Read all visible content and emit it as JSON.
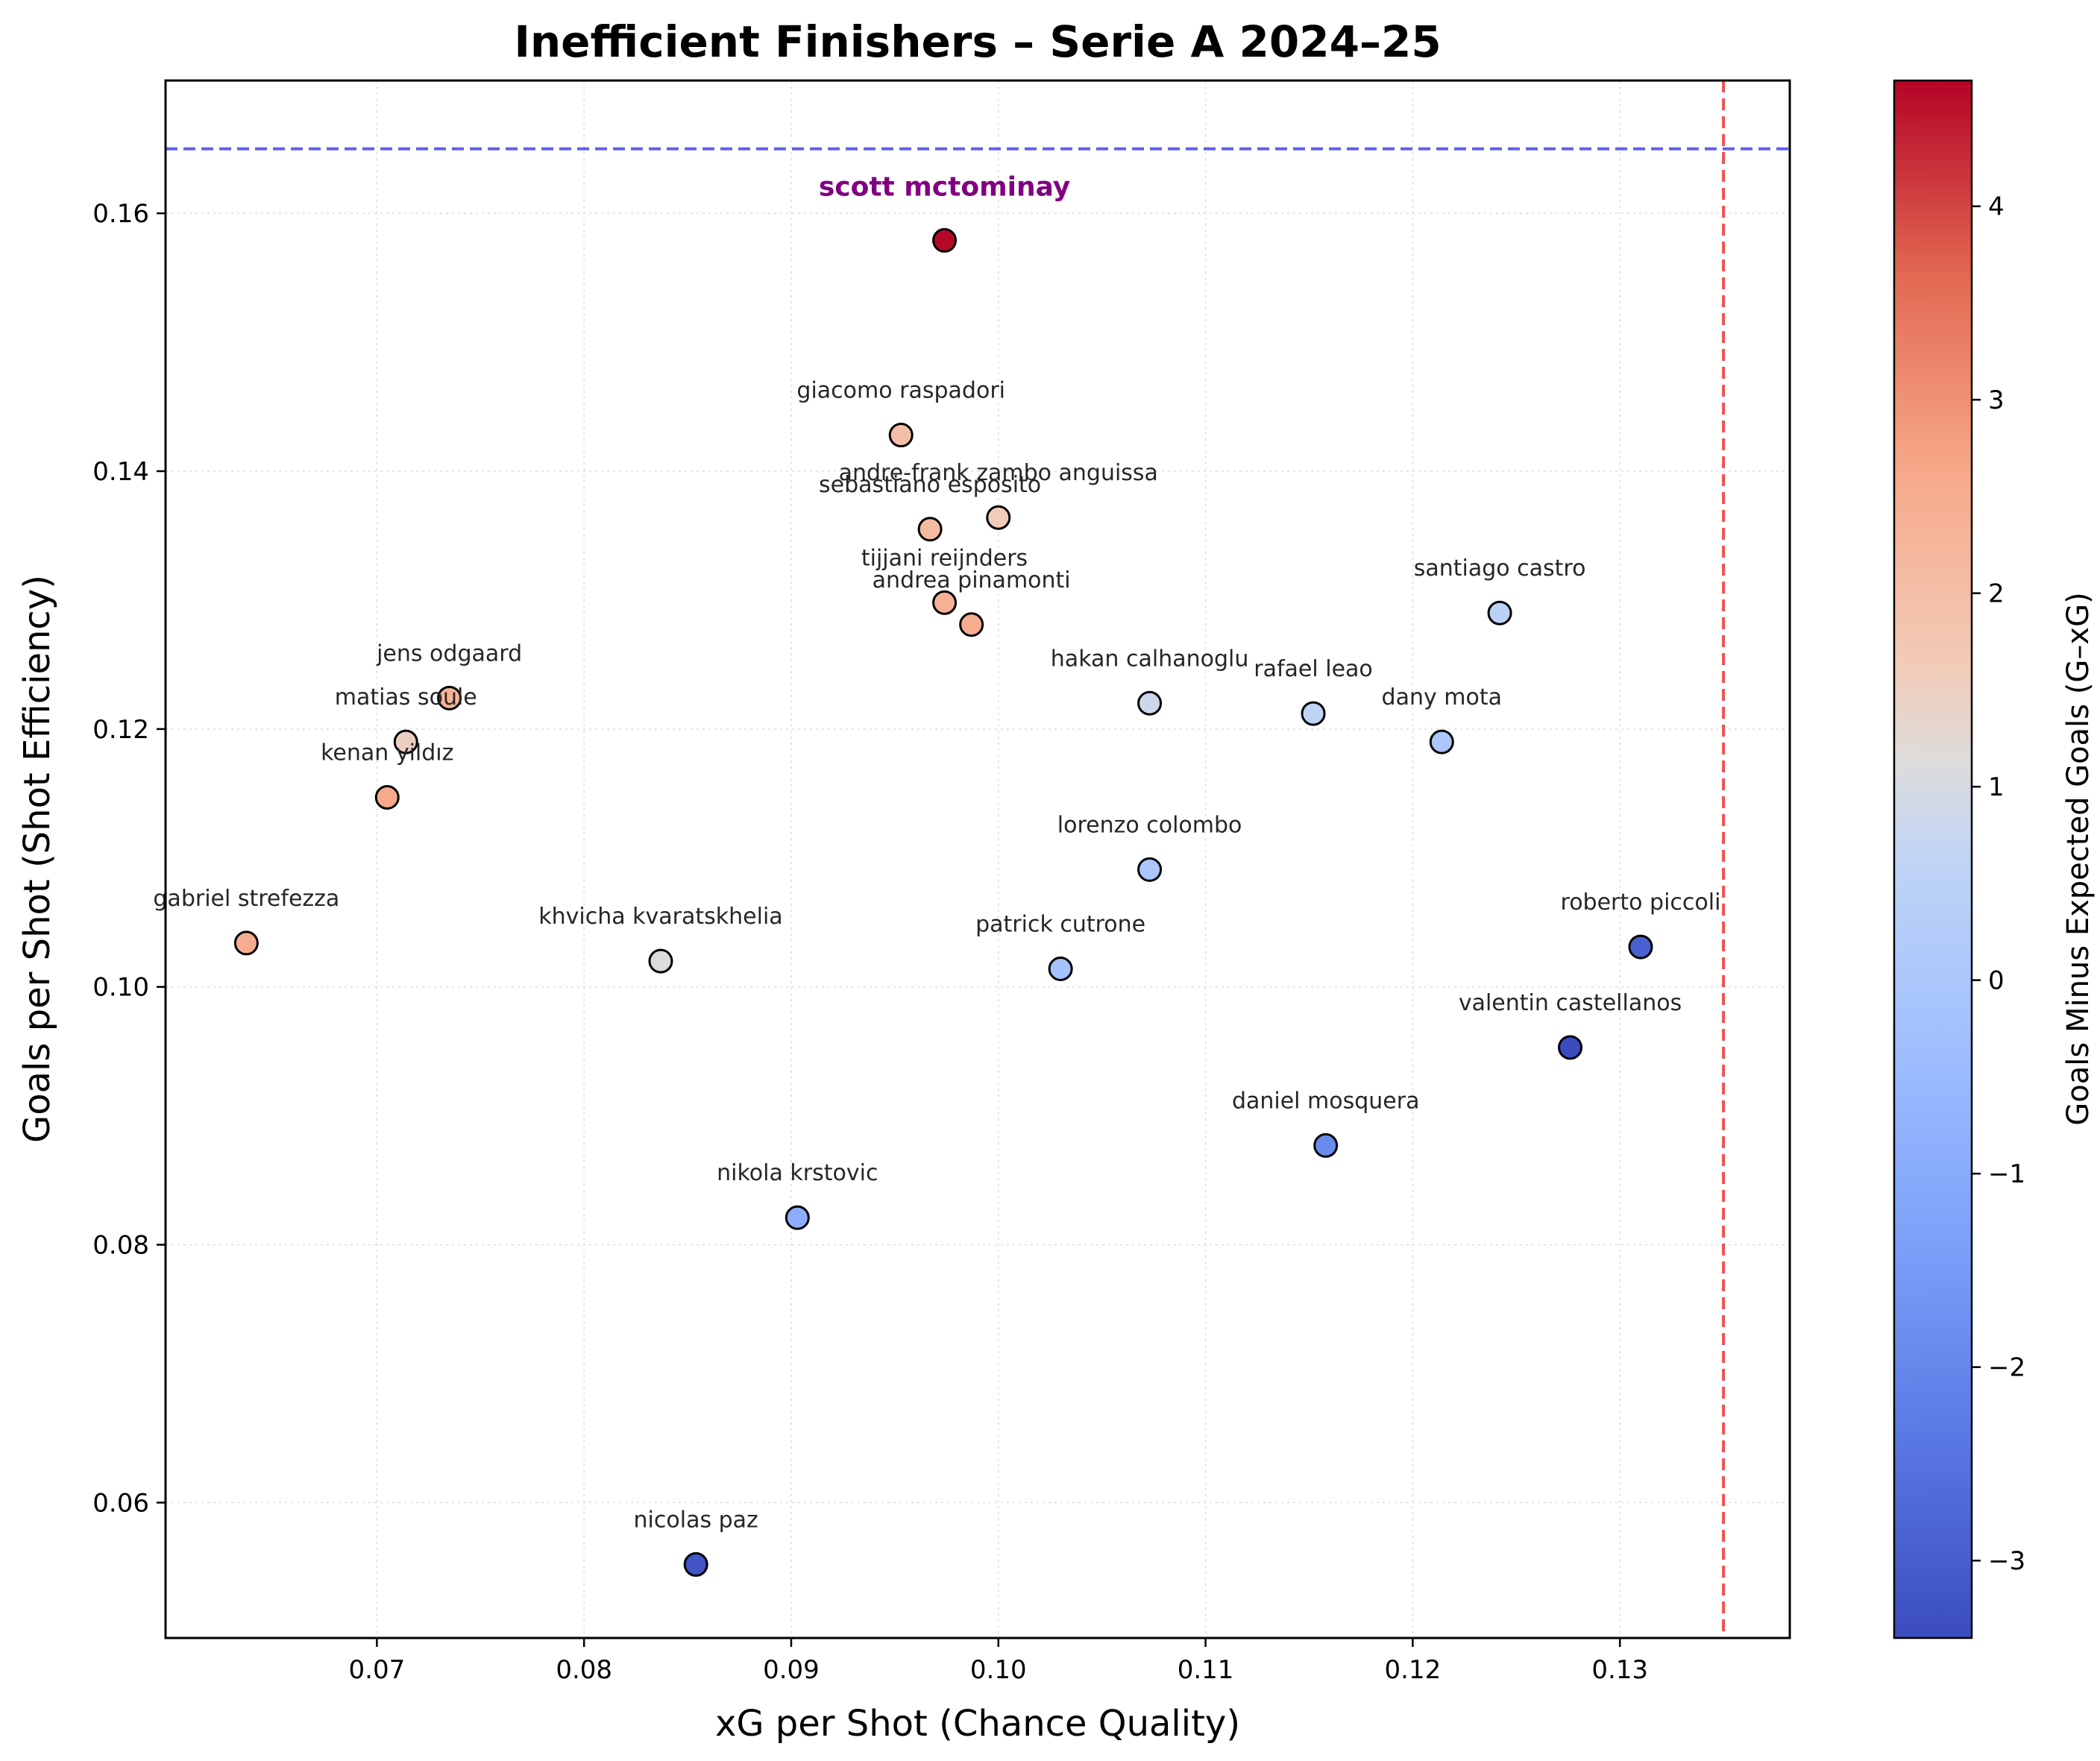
{
  "chart_data": {
    "type": "scatter",
    "title": "Inefficient Finishers – Serie A 2024–25",
    "xlabel": "xG per Shot (Chance Quality)",
    "ylabel": "Goals per Shot (Shot Efficiency)",
    "xlim": [
      0.0598,
      0.1382
    ],
    "ylim": [
      0.0495,
      0.1703
    ],
    "xticks": [
      "0.07",
      "0.08",
      "0.09",
      "0.10",
      "0.11",
      "0.12",
      "0.13"
    ],
    "yticks": [
      "0.06",
      "0.08",
      "0.10",
      "0.12",
      "0.14",
      "0.16"
    ],
    "grid": true,
    "reference_lines": [
      {
        "orientation": "horizontal",
        "value": 0.165,
        "color": "#4444ee",
        "style": "dashed"
      },
      {
        "orientation": "vertical",
        "value": 0.135,
        "color": "#ee3333",
        "style": "dashed"
      }
    ],
    "colorbar": {
      "label": "Goals Minus Expected Goals (G–xG)",
      "range": [
        -3.4,
        4.65
      ],
      "ticks": [
        "−3",
        "−2",
        "−1",
        "0",
        "1",
        "2",
        "3",
        "4"
      ],
      "colormap": "coolwarm"
    },
    "points": [
      {
        "name": "scott mctominay",
        "x": 0.0974,
        "y": 0.1579,
        "c": 4.6,
        "highlight": true
      },
      {
        "name": "giacomo raspadori",
        "x": 0.0953,
        "y": 0.1428,
        "c": 2.0
      },
      {
        "name": "andre-frank zambo anguissa",
        "x": 0.1,
        "y": 0.1364,
        "c": 1.6
      },
      {
        "name": "sebastiano esposito",
        "x": 0.0967,
        "y": 0.1355,
        "c": 2.1
      },
      {
        "name": "tijjani reijnders",
        "x": 0.0974,
        "y": 0.1298,
        "c": 2.4
      },
      {
        "name": "andrea pinamonti",
        "x": 0.0987,
        "y": 0.1281,
        "c": 2.5
      },
      {
        "name": "santiago castro",
        "x": 0.1242,
        "y": 0.129,
        "c": 0.5
      },
      {
        "name": "jens odgaard",
        "x": 0.0735,
        "y": 0.1224,
        "c": 2.3
      },
      {
        "name": "matias soule",
        "x": 0.0714,
        "y": 0.119,
        "c": 1.5
      },
      {
        "name": "kenan yildız",
        "x": 0.0705,
        "y": 0.1147,
        "c": 2.6
      },
      {
        "name": "hakan calhanoglu",
        "x": 0.1073,
        "y": 0.122,
        "c": 0.8
      },
      {
        "name": "rafael leao",
        "x": 0.1152,
        "y": 0.1212,
        "c": 0.6
      },
      {
        "name": "dany mota",
        "x": 0.1214,
        "y": 0.119,
        "c": 0.0
      },
      {
        "name": "lorenzo colombo",
        "x": 0.1073,
        "y": 0.1091,
        "c": 0.0
      },
      {
        "name": "gabriel strefezza",
        "x": 0.0637,
        "y": 0.1034,
        "c": 2.5
      },
      {
        "name": "khvicha kvaratskhelia",
        "x": 0.0837,
        "y": 0.102,
        "c": 1.1
      },
      {
        "name": "patrick cutrone",
        "x": 0.103,
        "y": 0.1014,
        "c": -0.2
      },
      {
        "name": "roberto piccoli",
        "x": 0.131,
        "y": 0.1031,
        "c": -2.9
      },
      {
        "name": "valentin castellanos",
        "x": 0.1276,
        "y": 0.0953,
        "c": -3.4
      },
      {
        "name": "daniel mosquera",
        "x": 0.1158,
        "y": 0.0877,
        "c": -1.9
      },
      {
        "name": "nikola krstovic",
        "x": 0.0903,
        "y": 0.0821,
        "c": -0.9
      },
      {
        "name": "nicolas paz",
        "x": 0.0854,
        "y": 0.0552,
        "c": -3.2
      }
    ]
  }
}
